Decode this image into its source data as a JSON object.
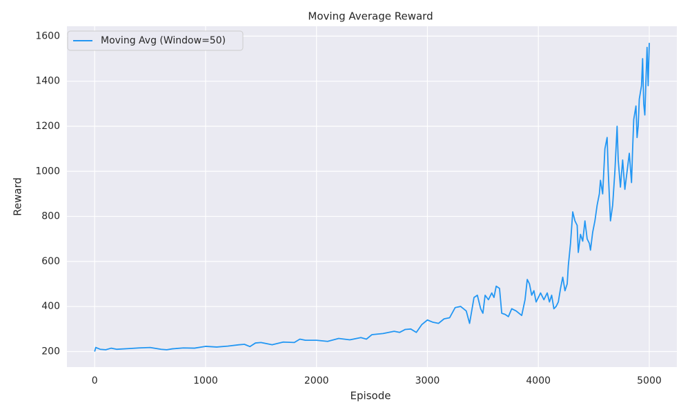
{
  "chart_data": {
    "type": "line",
    "title": "Moving Average Reward",
    "x_label": "Episode",
    "y_label": "Reward",
    "x": [
      0,
      10,
      50,
      100,
      150,
      200,
      300,
      400,
      500,
      600,
      650,
      700,
      800,
      900,
      1000,
      1100,
      1200,
      1300,
      1350,
      1400,
      1450,
      1500,
      1600,
      1700,
      1800,
      1850,
      1900,
      2000,
      2100,
      2200,
      2300,
      2400,
      2450,
      2500,
      2600,
      2700,
      2750,
      2800,
      2850,
      2900,
      2950,
      3000,
      3050,
      3100,
      3150,
      3200,
      3250,
      3300,
      3350,
      3380,
      3420,
      3450,
      3480,
      3500,
      3520,
      3550,
      3580,
      3600,
      3620,
      3650,
      3670,
      3700,
      3730,
      3760,
      3800,
      3850,
      3880,
      3900,
      3920,
      3940,
      3960,
      3980,
      4000,
      4020,
      4050,
      4080,
      4100,
      4120,
      4140,
      4160,
      4180,
      4200,
      4220,
      4240,
      4260,
      4270,
      4290,
      4310,
      4330,
      4350,
      4360,
      4380,
      4400,
      4420,
      4440,
      4460,
      4470,
      4490,
      4510,
      4530,
      4550,
      4560,
      4580,
      4600,
      4620,
      4630,
      4650,
      4670,
      4690,
      4710,
      4720,
      4740,
      4760,
      4780,
      4800,
      4820,
      4840,
      4850,
      4860,
      4880,
      4890,
      4900,
      4910,
      4930,
      4940,
      4950,
      4960,
      4970,
      4980,
      4990,
      5000
    ],
    "series": [
      {
        "name": "Moving Avg (Window=50)",
        "color": "#2196f3",
        "values": [
          200,
          218,
          210,
          208,
          215,
          210,
          213,
          216,
          218,
          210,
          208,
          212,
          216,
          215,
          223,
          220,
          224,
          230,
          232,
          222,
          238,
          240,
          230,
          242,
          240,
          255,
          250,
          250,
          245,
          258,
          252,
          262,
          255,
          275,
          280,
          290,
          285,
          298,
          300,
          285,
          320,
          340,
          330,
          325,
          345,
          350,
          395,
          400,
          380,
          325,
          440,
          450,
          390,
          370,
          450,
          430,
          460,
          440,
          490,
          480,
          370,
          365,
          355,
          390,
          380,
          360,
          430,
          520,
          500,
          450,
          470,
          420,
          440,
          460,
          430,
          460,
          420,
          450,
          390,
          400,
          420,
          480,
          530,
          470,
          500,
          580,
          680,
          820,
          780,
          760,
          640,
          720,
          690,
          780,
          700,
          680,
          650,
          730,
          780,
          850,
          900,
          960,
          900,
          1100,
          1150,
          1000,
          780,
          850,
          1000,
          1200,
          1050,
          930,
          1050,
          920,
          1000,
          1080,
          950,
          1100,
          1230,
          1290,
          1150,
          1200,
          1320,
          1380,
          1500,
          1300,
          1250,
          1400,
          1550,
          1380,
          1570
        ]
      }
    ],
    "xlim": [
      -250,
      5249
    ],
    "ylim": [
      131,
      1644
    ],
    "xticks": [
      0,
      1000,
      2000,
      3000,
      4000,
      5000
    ],
    "yticks": [
      200,
      400,
      600,
      800,
      1000,
      1200,
      1400,
      1600
    ],
    "grid": true,
    "legend": "upper left"
  }
}
